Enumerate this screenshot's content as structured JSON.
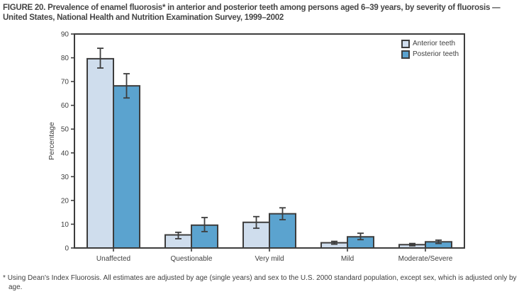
{
  "figure": {
    "title": "FIGURE 20. Prevalence of enamel fluorosis* in anterior and posterior teeth among persons aged 6–39 years, by severity of fluorosis — United States, National Health and Nutrition Examination Survey, 1999–2002",
    "footnote_marker": "*",
    "footnote": "Using Dean's Index Fluorosis. All estimates are adjusted by age (single years) and sex to the U.S. 2000 standard population, except sex, which is adjusted only by age."
  },
  "chart_data": {
    "type": "bar",
    "title": "",
    "xlabel": "",
    "ylabel": "Percentage",
    "ylim": [
      0,
      90
    ],
    "ytick_step": 10,
    "grid": false,
    "legend_position": "top-right-inside",
    "error_bars": true,
    "axis_color": "#3d3d3d",
    "categories": [
      "Unaffected",
      "Questionable",
      "Very mild",
      "Mild",
      "Moderate/Severe"
    ],
    "series": [
      {
        "name": "Anterior teeth",
        "color": "#cfdded",
        "values": [
          79.6,
          5.5,
          10.8,
          2.2,
          1.4
        ],
        "ci": [
          [
            75.7,
            84.0
          ],
          [
            3.9,
            6.6
          ],
          [
            8.3,
            13.2
          ],
          [
            1.6,
            2.8
          ],
          [
            0.9,
            1.9
          ]
        ]
      },
      {
        "name": "Posterior teeth",
        "color": "#5ba3cf",
        "values": [
          68.2,
          9.6,
          14.4,
          4.7,
          2.6
        ],
        "ci": [
          [
            63.1,
            73.3
          ],
          [
            6.9,
            12.8
          ],
          [
            11.9,
            16.9
          ],
          [
            3.5,
            6.2
          ],
          [
            1.9,
            3.3
          ]
        ]
      }
    ]
  }
}
